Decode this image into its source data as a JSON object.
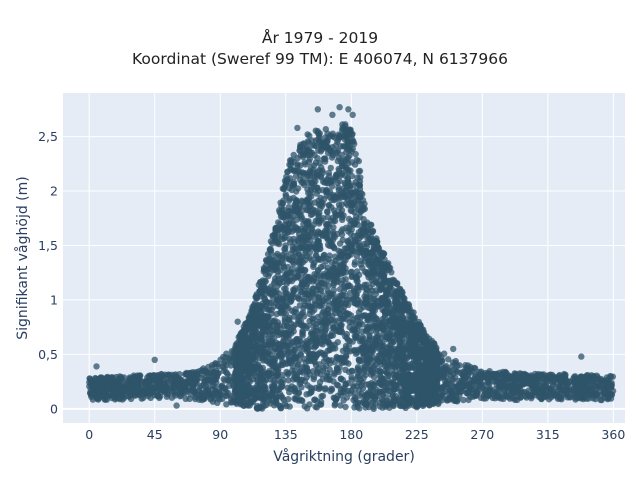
{
  "chart_data": {
    "type": "scatter",
    "title_line1": "År 1979 - 2019",
    "title_line2": "Koordinat (Sweref 99 TM): E 406074, N 6137966",
    "xlabel": "Vågriktning (grader)",
    "ylabel": "Signifikant våghöjd (m)",
    "xlim": [
      -18,
      368
    ],
    "ylim": [
      -0.13,
      2.9
    ],
    "x_ticks": [
      0,
      45,
      90,
      135,
      180,
      225,
      270,
      315,
      360
    ],
    "x_tick_labels": [
      "0",
      "45",
      "90",
      "135",
      "180",
      "225",
      "270",
      "315",
      "360"
    ],
    "y_ticks": [
      0,
      0.5,
      1,
      1.5,
      2,
      2.5
    ],
    "y_tick_labels": [
      "0",
      "0,5",
      "1",
      "1,5",
      "2",
      "2,5"
    ],
    "grid": true,
    "marker_color": "#2f5469",
    "envelope": {
      "x": [
        0,
        20,
        45,
        60,
        75,
        90,
        100,
        110,
        120,
        130,
        135,
        140,
        150,
        160,
        165,
        170,
        175,
        180,
        185,
        190,
        200,
        210,
        220,
        230,
        240,
        250,
        260,
        270,
        300,
        330,
        360
      ],
      "y_max": [
        0.28,
        0.3,
        0.32,
        0.32,
        0.35,
        0.45,
        0.6,
        0.85,
        1.3,
        1.8,
        2.2,
        2.35,
        2.5,
        2.6,
        2.55,
        2.5,
        2.65,
        2.6,
        2.3,
        1.8,
        1.5,
        1.2,
        0.95,
        0.72,
        0.55,
        0.45,
        0.4,
        0.36,
        0.32,
        0.32,
        0.3
      ],
      "y_min": [
        0.08,
        0.08,
        0.1,
        0.1,
        0.08,
        0.05,
        0.02,
        0.0,
        0.0,
        0.0,
        0.0,
        0.0,
        0.0,
        0.0,
        0.0,
        0.0,
        0.0,
        0.0,
        0.0,
        0.0,
        0.0,
        0.0,
        0.01,
        0.02,
        0.04,
        0.06,
        0.08,
        0.08,
        0.08,
        0.08,
        0.08
      ]
    },
    "outliers": [
      {
        "x": 102,
        "y": 0.8
      },
      {
        "x": 143,
        "y": 2.58
      },
      {
        "x": 150,
        "y": 2.52
      },
      {
        "x": 157,
        "y": 2.75
      },
      {
        "x": 167,
        "y": 2.7
      },
      {
        "x": 172,
        "y": 2.77
      },
      {
        "x": 178,
        "y": 2.75
      },
      {
        "x": 181,
        "y": 2.7
      },
      {
        "x": 223,
        "y": 0.83
      },
      {
        "x": 250,
        "y": 0.55
      },
      {
        "x": 338,
        "y": 0.48
      },
      {
        "x": 45,
        "y": 0.45
      },
      {
        "x": 60,
        "y": 0.03
      },
      {
        "x": 5,
        "y": 0.39
      }
    ]
  }
}
